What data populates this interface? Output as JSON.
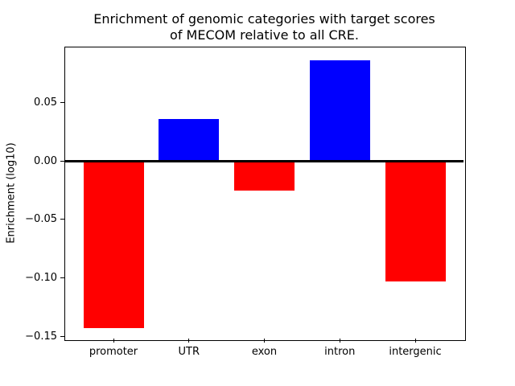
{
  "chart_data": {
    "type": "bar",
    "title_lines": [
      "Enrichment of genomic categories with target scores",
      "of MECOM relative to all CRE."
    ],
    "ylabel": "Enrichment (log10)",
    "xlabel": "",
    "categories": [
      "promoter",
      "UTR",
      "exon",
      "intron",
      "intergenic"
    ],
    "values": [
      -0.143,
      0.036,
      -0.025,
      0.086,
      -0.103
    ],
    "bar_colors": [
      "#ff0000",
      "#0000ff",
      "#ff0000",
      "#0000ff",
      "#ff0000"
    ],
    "yticks": [
      0.05,
      0.0,
      -0.05,
      -0.1,
      -0.15
    ],
    "ytick_labels": [
      "0.05",
      "0.00",
      "−0.05",
      "−0.10",
      "−0.15"
    ],
    "ylim": [
      -0.152,
      0.0973
    ],
    "xlim": [
      -0.64,
      4.64
    ],
    "bar_width_fraction": 0.8,
    "colors": {
      "positive": "#0000ff",
      "negative": "#ff0000",
      "zero_line": "#000000",
      "frame": "#000000",
      "background": "#ffffff"
    },
    "grid": false,
    "legend": "none"
  }
}
